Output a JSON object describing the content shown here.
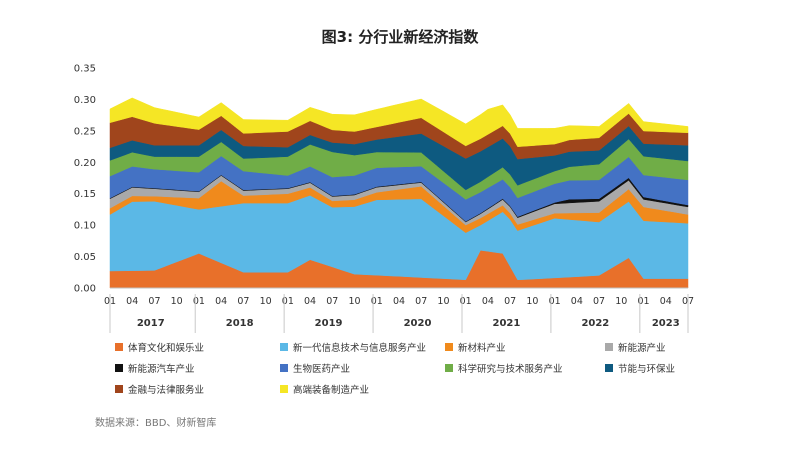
{
  "chart_data": {
    "type": "area",
    "stacked": true,
    "title": "图3: 分行业新经济指数",
    "source": "数据来源：BBD、财新智库",
    "ylim": [
      0,
      0.35
    ],
    "yticks": [
      "0.00",
      "0.05",
      "0.10",
      "0.15",
      "0.20",
      "0.25",
      "0.30",
      "0.35"
    ],
    "month_labels": [
      "01",
      "04",
      "07",
      "10",
      "01",
      "04",
      "07",
      "10",
      "01",
      "04",
      "07",
      "10",
      "01",
      "04",
      "07",
      "10",
      "01",
      "04",
      "07",
      "10",
      "01",
      "04",
      "07",
      "10",
      "01",
      "04",
      "07"
    ],
    "year_labels": [
      "2017",
      "2018",
      "2019",
      "2020",
      "2021",
      "2022",
      "2023"
    ],
    "x_start": "2017-01",
    "x_end": "2023-07",
    "legend_position": "bottom",
    "series": [
      {
        "name": "体育文化和娱乐业",
        "color": "#e8702a",
        "knots": [
          [
            0,
            0.027
          ],
          [
            6,
            0.028
          ],
          [
            12,
            0.055
          ],
          [
            18,
            0.025
          ],
          [
            24,
            0.025
          ],
          [
            27,
            0.045
          ],
          [
            33,
            0.022
          ],
          [
            40,
            0.018
          ],
          [
            48,
            0.013
          ],
          [
            50,
            0.06
          ],
          [
            53,
            0.055
          ],
          [
            55,
            0.013
          ],
          [
            60,
            0.016
          ],
          [
            66,
            0.02
          ],
          [
            70,
            0.048
          ],
          [
            72,
            0.015
          ],
          [
            78,
            0.015
          ]
        ]
      },
      {
        "name": "新一代信息技术与信息服务产业",
        "color": "#5bb8e6",
        "knots": [
          [
            0,
            0.09
          ],
          [
            3,
            0.11
          ],
          [
            6,
            0.11
          ],
          [
            12,
            0.07
          ],
          [
            18,
            0.11
          ],
          [
            24,
            0.11
          ],
          [
            30,
            0.095
          ],
          [
            36,
            0.12
          ],
          [
            42,
            0.125
          ],
          [
            48,
            0.075
          ],
          [
            50,
            0.04
          ],
          [
            54,
            0.075
          ],
          [
            60,
            0.095
          ],
          [
            66,
            0.085
          ],
          [
            72,
            0.092
          ],
          [
            78,
            0.088
          ]
        ]
      },
      {
        "name": "新材料产业",
        "color": "#f08a1c",
        "knots": [
          [
            0,
            0.01
          ],
          [
            6,
            0.008
          ],
          [
            12,
            0.018
          ],
          [
            15,
            0.04
          ],
          [
            18,
            0.012
          ],
          [
            24,
            0.015
          ],
          [
            30,
            0.01
          ],
          [
            36,
            0.012
          ],
          [
            42,
            0.02
          ],
          [
            48,
            0.012
          ],
          [
            54,
            0.01
          ],
          [
            60,
            0.008
          ],
          [
            66,
            0.015
          ],
          [
            72,
            0.022
          ],
          [
            78,
            0.014
          ]
        ]
      },
      {
        "name": "新能源产业",
        "color": "#a9a9a9",
        "knots": [
          [
            0,
            0.015
          ],
          [
            6,
            0.012
          ],
          [
            12,
            0.01
          ],
          [
            18,
            0.008
          ],
          [
            24,
            0.008
          ],
          [
            30,
            0.007
          ],
          [
            36,
            0.008
          ],
          [
            42,
            0.006
          ],
          [
            48,
            0.005
          ],
          [
            54,
            0.01
          ],
          [
            60,
            0.015
          ],
          [
            66,
            0.018
          ],
          [
            72,
            0.012
          ],
          [
            78,
            0.012
          ]
        ]
      },
      {
        "name": "新能源汽车产业",
        "color": "#111111",
        "knots": [
          [
            0,
            0.001
          ],
          [
            24,
            0.001
          ],
          [
            48,
            0.001
          ],
          [
            60,
            0.002
          ],
          [
            62,
            0.006
          ],
          [
            66,
            0.004
          ],
          [
            70,
            0.004
          ],
          [
            78,
            0.003
          ]
        ]
      },
      {
        "name": "生物医药产业",
        "color": "#4472c4",
        "knots": [
          [
            0,
            0.035
          ],
          [
            6,
            0.03
          ],
          [
            12,
            0.03
          ],
          [
            18,
            0.03
          ],
          [
            24,
            0.02
          ],
          [
            30,
            0.03
          ],
          [
            36,
            0.03
          ],
          [
            42,
            0.025
          ],
          [
            48,
            0.035
          ],
          [
            54,
            0.03
          ],
          [
            60,
            0.03
          ],
          [
            66,
            0.03
          ],
          [
            72,
            0.035
          ],
          [
            78,
            0.04
          ]
        ]
      },
      {
        "name": "科学研究与技术服务产业",
        "color": "#70ad47",
        "knots": [
          [
            0,
            0.025
          ],
          [
            6,
            0.02
          ],
          [
            12,
            0.025
          ],
          [
            18,
            0.02
          ],
          [
            24,
            0.03
          ],
          [
            30,
            0.04
          ],
          [
            36,
            0.025
          ],
          [
            42,
            0.022
          ],
          [
            48,
            0.015
          ],
          [
            54,
            0.02
          ],
          [
            60,
            0.02
          ],
          [
            66,
            0.025
          ],
          [
            72,
            0.03
          ],
          [
            78,
            0.03
          ]
        ]
      },
      {
        "name": "节能与环保业",
        "color": "#0e5a80",
        "knots": [
          [
            0,
            0.02
          ],
          [
            6,
            0.018
          ],
          [
            12,
            0.018
          ],
          [
            18,
            0.02
          ],
          [
            24,
            0.015
          ],
          [
            30,
            0.015
          ],
          [
            36,
            0.02
          ],
          [
            42,
            0.03
          ],
          [
            48,
            0.05
          ],
          [
            54,
            0.045
          ],
          [
            60,
            0.025
          ],
          [
            66,
            0.022
          ],
          [
            72,
            0.02
          ],
          [
            78,
            0.025
          ]
        ]
      },
      {
        "name": "金融与法律服务业",
        "color": "#a0451c",
        "knots": [
          [
            0,
            0.04
          ],
          [
            6,
            0.035
          ],
          [
            12,
            0.025
          ],
          [
            18,
            0.02
          ],
          [
            24,
            0.025
          ],
          [
            30,
            0.02
          ],
          [
            36,
            0.02
          ],
          [
            42,
            0.025
          ],
          [
            48,
            0.02
          ],
          [
            54,
            0.02
          ],
          [
            60,
            0.018
          ],
          [
            66,
            0.02
          ],
          [
            72,
            0.02
          ],
          [
            78,
            0.02
          ]
        ]
      },
      {
        "name": "高端装备制造产业",
        "color": "#f5e625",
        "knots": [
          [
            0,
            0.022
          ],
          [
            3,
            0.03
          ],
          [
            6,
            0.025
          ],
          [
            12,
            0.02
          ],
          [
            18,
            0.022
          ],
          [
            24,
            0.018
          ],
          [
            30,
            0.025
          ],
          [
            36,
            0.028
          ],
          [
            42,
            0.03
          ],
          [
            48,
            0.035
          ],
          [
            51,
            0.04
          ],
          [
            54,
            0.03
          ],
          [
            60,
            0.025
          ],
          [
            66,
            0.018
          ],
          [
            72,
            0.015
          ],
          [
            78,
            0.01
          ]
        ]
      }
    ]
  }
}
